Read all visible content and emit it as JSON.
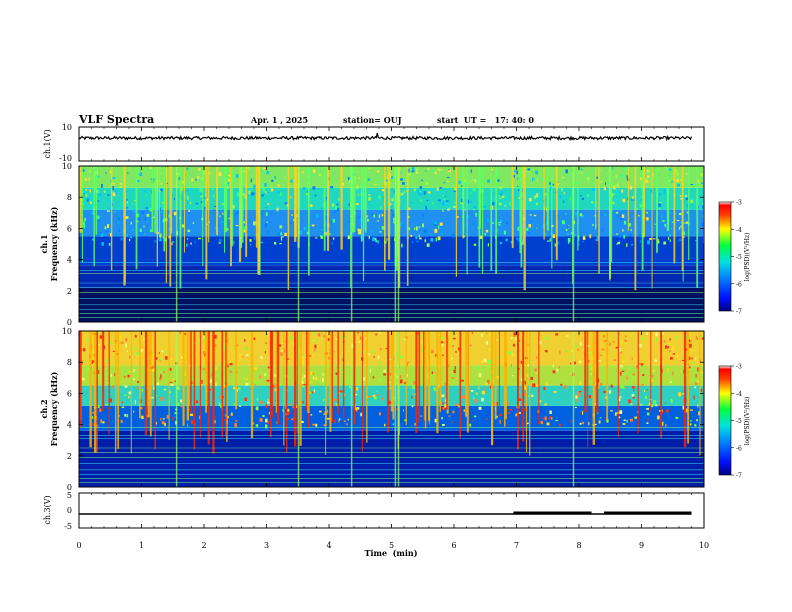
{
  "header": {
    "title": "VLF Spectra",
    "date": "Apr. 1 , 2025",
    "station": "station= OUJ",
    "start": "start  UT =   17: 40: 0"
  },
  "colors": {
    "low": "#000090",
    "mid": "#00e0c0",
    "high": "#ff0000"
  },
  "chart_data": [
    {
      "type": "line",
      "name": "ch1-waveform",
      "ylabel": "ch.1(V)",
      "ylim": [
        -10,
        10
      ],
      "y_tick_labels": [
        "10",
        "-10"
      ],
      "x": [
        0,
        1,
        2,
        3,
        4,
        5,
        6,
        7,
        8,
        9,
        9.8
      ],
      "y": [
        3.5,
        3.4,
        3.5,
        3.6,
        3.5,
        3.4,
        3.5,
        3.5,
        3.4,
        3.5,
        3.5
      ]
    },
    {
      "type": "heatmap",
      "name": "ch1-spectrogram",
      "ylabel": "ch.1\nFrequency (kHz)",
      "ylabel_line1": "ch.1",
      "ylabel_line2": "Frequency (kHz)",
      "ylim": [
        0,
        10
      ],
      "y_ticks": [
        "0",
        "2",
        "4",
        "6",
        "8",
        "10"
      ],
      "colorbar": {
        "label": "log(PSD)(V²/Hz)",
        "range": [
          -7,
          -3
        ],
        "ticks": [
          "-3",
          "-4",
          "-5",
          "-6",
          "-7"
        ]
      }
    },
    {
      "type": "heatmap",
      "name": "ch2-spectrogram",
      "ylabel_line1": "ch.2",
      "ylabel_line2": "Frequency (kHz)",
      "ylim": [
        0,
        10
      ],
      "y_ticks": [
        "0",
        "2",
        "4",
        "6",
        "8",
        "10"
      ],
      "colorbar": {
        "label": "log(PSD)(V²/Hz)",
        "range": [
          -7,
          -3
        ],
        "ticks": [
          "-3",
          "-4",
          "-5",
          "-6",
          "-7"
        ]
      }
    },
    {
      "type": "line",
      "name": "ch3-signal",
      "ylabel": "ch.3(V)",
      "ylim": [
        -5,
        5
      ],
      "y_tick_labels": [
        "5",
        "0",
        "-5"
      ],
      "x": [
        0,
        6.95,
        6.95,
        8.2,
        8.2,
        8.4,
        8.4,
        9.8
      ],
      "y": [
        -1,
        -1,
        -1,
        -1,
        -1,
        -1,
        -1,
        -1
      ],
      "thick_segments": [
        [
          6.95,
          8.2
        ],
        [
          8.4,
          9.8
        ]
      ]
    }
  ],
  "x_axis": {
    "label": "Time  (min)",
    "range": [
      0,
      10
    ],
    "ticks": [
      "0",
      "1",
      "2",
      "3",
      "4",
      "5",
      "6",
      "7",
      "8",
      "9",
      "10"
    ]
  }
}
